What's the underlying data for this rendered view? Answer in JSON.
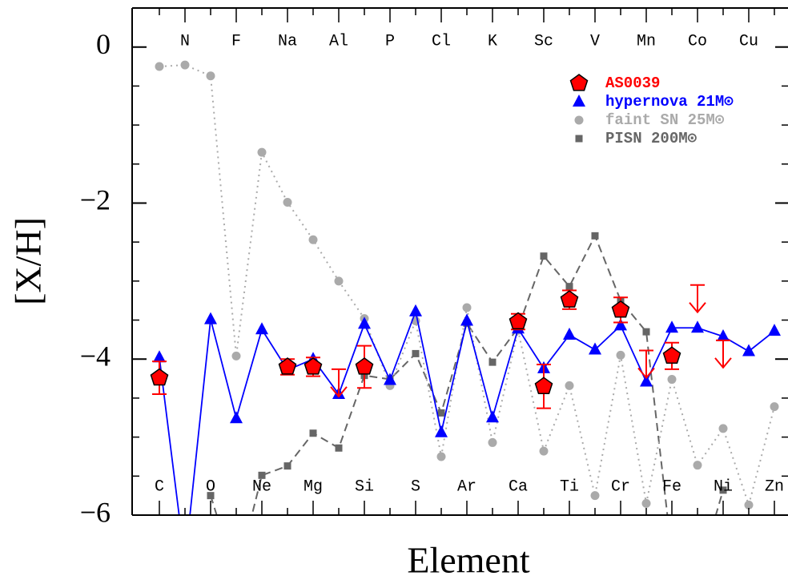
{
  "chart_data": {
    "type": "line",
    "x_label": "Element",
    "y_label": "[X/H]",
    "categories": [
      "C",
      "N",
      "O",
      "F",
      "Ne",
      "Na",
      "Mg",
      "Al",
      "Si",
      "P",
      "S",
      "Cl",
      "Ar",
      "K",
      "Ca",
      "Sc",
      "Ti",
      "V",
      "Cr",
      "Mn",
      "Fe",
      "Co",
      "Ni",
      "Cu",
      "Zn"
    ],
    "ylim": [
      -6,
      0.5
    ],
    "yticks": [
      {
        "value": -6,
        "label": "−6"
      },
      {
        "value": -4,
        "label": "−4"
      },
      {
        "value": -2,
        "label": "−2"
      },
      0
    ],
    "yticks_minor": [
      -5.5,
      -5,
      -4.5,
      -3.5,
      -3,
      -2.5,
      -1.5,
      -1,
      -0.5
    ],
    "series": [
      {
        "name": "AS0039",
        "color": "#ff0000",
        "marker": "pentagon",
        "line": "none",
        "values": [
          -4.24,
          null,
          null,
          null,
          null,
          -4.1,
          -4.1,
          null,
          -4.1,
          null,
          null,
          null,
          null,
          null,
          -3.52,
          -4.35,
          -3.24,
          null,
          -3.37,
          null,
          -3.96,
          null,
          null,
          null,
          null
        ],
        "errors": [
          0.21,
          null,
          null,
          null,
          null,
          0.1,
          0.12,
          null,
          0.27,
          null,
          null,
          null,
          null,
          null,
          0.1,
          0.28,
          0.12,
          null,
          0.16,
          null,
          0.17,
          null,
          null,
          null,
          null
        ],
        "upper_limits": [
          null,
          null,
          null,
          null,
          null,
          null,
          null,
          -4.13,
          null,
          null,
          null,
          null,
          null,
          null,
          null,
          null,
          null,
          null,
          null,
          -3.89,
          null,
          -3.05,
          -3.76,
          null,
          null
        ]
      },
      {
        "name": "hypernova 21M⊙",
        "color": "#0000ff",
        "marker": "triangle",
        "line": "solid",
        "values": [
          -3.98,
          -6.6,
          -3.49,
          -4.76,
          -3.62,
          -4.14,
          -4.0,
          -4.45,
          -3.55,
          -4.27,
          -3.39,
          -4.94,
          -3.51,
          -4.75,
          -3.61,
          -4.12,
          -3.69,
          -3.88,
          -3.57,
          -4.29,
          -3.6,
          -3.6,
          -3.71,
          -3.9,
          -3.64
        ]
      },
      {
        "name": "faint SN 25M⊙",
        "color": "#aaaaaa",
        "marker": "circle",
        "line": "dotted",
        "values": [
          -0.25,
          -0.23,
          -0.37,
          -3.96,
          -1.35,
          -1.99,
          -2.47,
          -3.0,
          -3.48,
          -4.34,
          -3.51,
          -5.25,
          -3.34,
          -5.07,
          -3.63,
          -5.18,
          -4.34,
          -5.75,
          -3.95,
          -5.85,
          -4.26,
          -5.36,
          -4.89,
          -5.87,
          -4.61
        ]
      },
      {
        "name": "PISN 200M⊙",
        "color": "#666666",
        "marker": "square",
        "line": "dashed",
        "values": [
          null,
          null,
          -5.75,
          -6.8,
          -5.49,
          -5.37,
          -4.95,
          -5.14,
          -4.21,
          -4.26,
          -3.93,
          -4.69,
          -3.54,
          -4.04,
          -3.6,
          -2.68,
          -3.07,
          -2.42,
          -3.25,
          -3.65,
          -6.5,
          -6.8,
          -5.68,
          null,
          null
        ]
      }
    ]
  }
}
